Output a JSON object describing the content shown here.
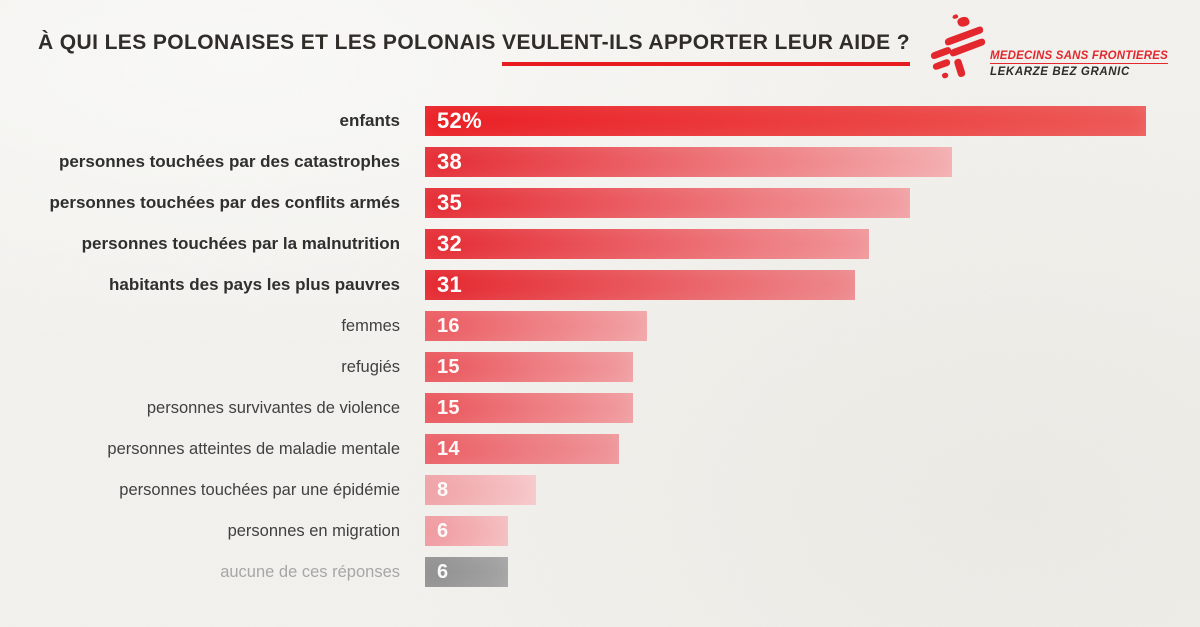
{
  "header": {
    "title_normal": "À QUI LES POLONAISES ET LES POLONAIS ",
    "title_underlined": "VEULENT-ILS APPORTER LEUR AIDE ?",
    "underline_color": "#e8191d",
    "logo": {
      "line1": "MEDECINS SANS FRONTIERES",
      "line2": "LEKARZE BEZ GRANIC",
      "brand_red": "#e4252b",
      "brand_dark": "#2b2926"
    }
  },
  "chart_data": {
    "type": "bar",
    "orientation": "horizontal",
    "title": "À QUI LES POLONAISES ET LES POLONAIS VEULENT-ILS APPORTER LEUR AIDE ?",
    "xlabel": "",
    "ylabel": "",
    "max_value": 52,
    "grid": false,
    "legend": false,
    "categories": [
      "enfants",
      "personnes touchées par des catastrophes",
      "personnes touchées par des conflits armés",
      "personnes touchées par la malnutrition",
      "habitants des pays les plus pauvres",
      "femmes",
      "refugiés",
      "personnes survivantes de violence",
      "personnes atteintes de maladie mentale",
      "personnes touchées par une épidémie",
      "personnes en migration",
      "aucune de ces réponses"
    ],
    "values": [
      52,
      38,
      35,
      32,
      31,
      16,
      15,
      15,
      14,
      8,
      6,
      6
    ],
    "value_labels": [
      "52%",
      "38",
      "35",
      "32",
      "31",
      "16",
      "15",
      "15",
      "14",
      "8",
      "6",
      "6"
    ],
    "emphasized": [
      true,
      true,
      true,
      true,
      true,
      false,
      false,
      false,
      false,
      false,
      false,
      false
    ],
    "bar_colors": [
      {
        "from": "#eb1c22",
        "to": "#ee5754"
      },
      {
        "from": "#e62830",
        "to": "#f5aeb0"
      },
      {
        "from": "#e62830",
        "to": "#f3a0a3"
      },
      {
        "from": "#e62830",
        "to": "#f29599"
      },
      {
        "from": "#e5242b",
        "to": "#ef888c"
      },
      {
        "from": "#ec575d",
        "to": "#f3a3a6"
      },
      {
        "from": "#eb5258",
        "to": "#f29da1"
      },
      {
        "from": "#eb5258",
        "to": "#f29da1"
      },
      {
        "from": "#ec5c62",
        "to": "#f0959a"
      },
      {
        "from": "#f1a0a4",
        "to": "#f8c8ca"
      },
      {
        "from": "#f1989d",
        "to": "#f6bec1"
      },
      {
        "from": "#8f8f8f",
        "to": "#a3a3a3"
      }
    ],
    "label_colors": [
      "#2d2d2d",
      "#2d2d2d",
      "#2d2d2d",
      "#2d2d2d",
      "#2d2d2d",
      "#3e3e3e",
      "#3e3e3e",
      "#3e3e3e",
      "#3e3e3e",
      "#3e3e3e",
      "#3e3e3e",
      "#a6a6a6"
    ]
  }
}
